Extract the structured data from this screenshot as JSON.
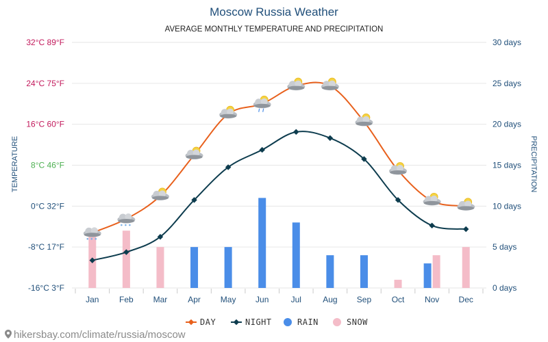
{
  "chart_data": {
    "type": "line",
    "title": "Moscow Russia Weather",
    "subtitle": "AVERAGE MONTHLY TEMPERATURE AND PRECIPITATION",
    "categories": [
      "Jan",
      "Feb",
      "Mar",
      "Apr",
      "May",
      "Jun",
      "Jul",
      "Aug",
      "Sep",
      "Oct",
      "Nov",
      "Dec"
    ],
    "y_left": {
      "label": "TEMPERATURE",
      "range_c": [
        -16,
        32
      ],
      "ticks": [
        {
          "value": 32,
          "label": "32°C 89°F",
          "color": "#c2185b"
        },
        {
          "value": 24,
          "label": "24°C 75°F",
          "color": "#c2185b"
        },
        {
          "value": 16,
          "label": "16°C 60°F",
          "color": "#c2185b"
        },
        {
          "value": 8,
          "label": "8°C 46°F",
          "color": "#4caf50"
        },
        {
          "value": 0,
          "label": "0°C 32°F",
          "color": "#1f4e79"
        },
        {
          "value": -8,
          "label": "-8°C 17°F",
          "color": "#1f4e79"
        },
        {
          "value": -16,
          "label": "-16°C 3°F",
          "color": "#1f4e79"
        }
      ]
    },
    "y_right": {
      "label": "PRECIPITATION",
      "range_days": [
        0,
        30
      ],
      "ticks": [
        {
          "value": 30,
          "label": "30 days"
        },
        {
          "value": 25,
          "label": "25 days"
        },
        {
          "value": 20,
          "label": "20 days"
        },
        {
          "value": 15,
          "label": "15 days"
        },
        {
          "value": 10,
          "label": "10 days"
        },
        {
          "value": 5,
          "label": "5 days"
        },
        {
          "value": 0,
          "label": "0 days"
        }
      ]
    },
    "series": [
      {
        "name": "DAY",
        "kind": "line",
        "axis": "left",
        "color": "#e8601c",
        "values": [
          -5.2,
          -2.5,
          2,
          10,
          18,
          20,
          23.5,
          23.5,
          16.5,
          7,
          1,
          0
        ]
      },
      {
        "name": "NIGHT",
        "kind": "line",
        "axis": "left",
        "color": "#0d3c4e",
        "values": [
          -10.6,
          -9,
          -6,
          1.2,
          7.6,
          11,
          14.5,
          13.3,
          9.2,
          1.2,
          -3.8,
          -4.5
        ]
      },
      {
        "name": "RAIN",
        "kind": "bar",
        "axis": "right",
        "color": "#4a8de8",
        "values": [
          0,
          0,
          0,
          5,
          5,
          11,
          8,
          4,
          4,
          0,
          3,
          0
        ]
      },
      {
        "name": "SNOW",
        "kind": "bar",
        "axis": "right",
        "color": "#f4bcc8",
        "values": [
          7,
          7,
          5,
          0,
          0,
          0,
          0,
          0,
          0,
          1,
          4,
          5
        ]
      }
    ],
    "weather_icons": [
      "cloud-snow",
      "cloud-snow",
      "cloud-sun",
      "cloud-sun",
      "cloud-sun",
      "cloud-sun-rain",
      "cloud-sun",
      "cloud-sun",
      "cloud-sun",
      "cloud-sun",
      "cloud-sun",
      "cloud-sun"
    ],
    "legend_position": "bottom",
    "grid": true
  },
  "footer": {
    "source": "hikersbay.com/climate/russia/moscow",
    "icon": "map-pin-icon"
  }
}
